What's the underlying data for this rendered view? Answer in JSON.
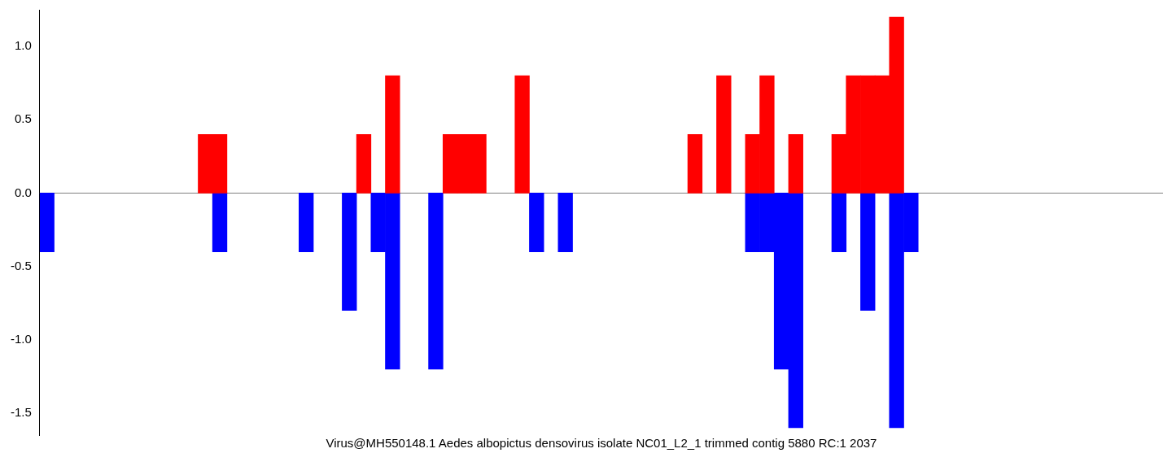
{
  "chart_data": {
    "type": "bar",
    "stacked": true,
    "xlabel": "Virus@MH550148.1 Aedes albopictus densovirus isolate NC01_L2_1 trimmed contig 5880 RC:1 2037",
    "categories": [
      null,
      null,
      null,
      null,
      null,
      null,
      null,
      null,
      null,
      null,
      null,
      null,
      null,
      null,
      null,
      null,
      null,
      null,
      null,
      null,
      null,
      null,
      null,
      null,
      null,
      null,
      null,
      null,
      null,
      null,
      null,
      null,
      null,
      null,
      null,
      null,
      null,
      null,
      null,
      null,
      null,
      null,
      null,
      null,
      null,
      null,
      null,
      null,
      null,
      null,
      null,
      null,
      null,
      null,
      null,
      null,
      null,
      null,
      null,
      null,
      null,
      null,
      null,
      null,
      null,
      null,
      null,
      null,
      null,
      null,
      null,
      null,
      null,
      null,
      null,
      null,
      null,
      null
    ],
    "series": [
      {
        "color": "#ff0000",
        "values": [
          null,
          null,
          null,
          null,
          null,
          null,
          null,
          null,
          null,
          null,
          null,
          0.4,
          0.4,
          null,
          null,
          null,
          null,
          null,
          null,
          null,
          null,
          null,
          0.4,
          null,
          0.8,
          null,
          null,
          null,
          0.4,
          0.4,
          0.4,
          null,
          null,
          0.8,
          null,
          null,
          null,
          null,
          null,
          null,
          null,
          null,
          null,
          null,
          null,
          0.4,
          null,
          0.8,
          null,
          0.4,
          0.8,
          null,
          0.4,
          null,
          null,
          0.4,
          0.8,
          0.8,
          0.8,
          1.2,
          null,
          null,
          null,
          null,
          null,
          null,
          null,
          null,
          null,
          null,
          null,
          null,
          null,
          null,
          null,
          null,
          null,
          null
        ]
      },
      {
        "color": "#0000ff",
        "values": [
          -0.4,
          null,
          null,
          null,
          null,
          null,
          null,
          null,
          null,
          null,
          null,
          null,
          -0.4,
          null,
          null,
          null,
          null,
          null,
          -0.4,
          null,
          null,
          -0.8,
          null,
          -0.4,
          -1.2,
          null,
          null,
          -1.2,
          null,
          null,
          null,
          null,
          null,
          null,
          -0.4,
          null,
          -0.4,
          null,
          null,
          null,
          null,
          null,
          null,
          null,
          null,
          null,
          null,
          null,
          null,
          -0.4,
          -0.4,
          -1.2,
          -1.6,
          null,
          null,
          -0.4,
          null,
          -0.8,
          null,
          -1.6,
          -0.4,
          null,
          null,
          null,
          null,
          null,
          null,
          null,
          null,
          null,
          null,
          null,
          null,
          null,
          null,
          null,
          null,
          null
        ]
      }
    ],
    "ylim": [
      -1.65,
      1.25
    ],
    "yticks": [
      {
        "value": -1.5,
        "label": "-1.5"
      },
      {
        "value": -1,
        "label": "-1.0"
      },
      {
        "value": -0.5,
        "label": "-0.5"
      },
      {
        "value": 0,
        "label": "0.0"
      },
      {
        "value": 0.5,
        "label": "0.5"
      },
      {
        "value": 1,
        "label": "1.0"
      }
    ],
    "ref_lines": [
      {
        "axis": "y",
        "value": 0,
        "color": "#808080"
      }
    ],
    "grid": false,
    "tick_labels": "y"
  }
}
